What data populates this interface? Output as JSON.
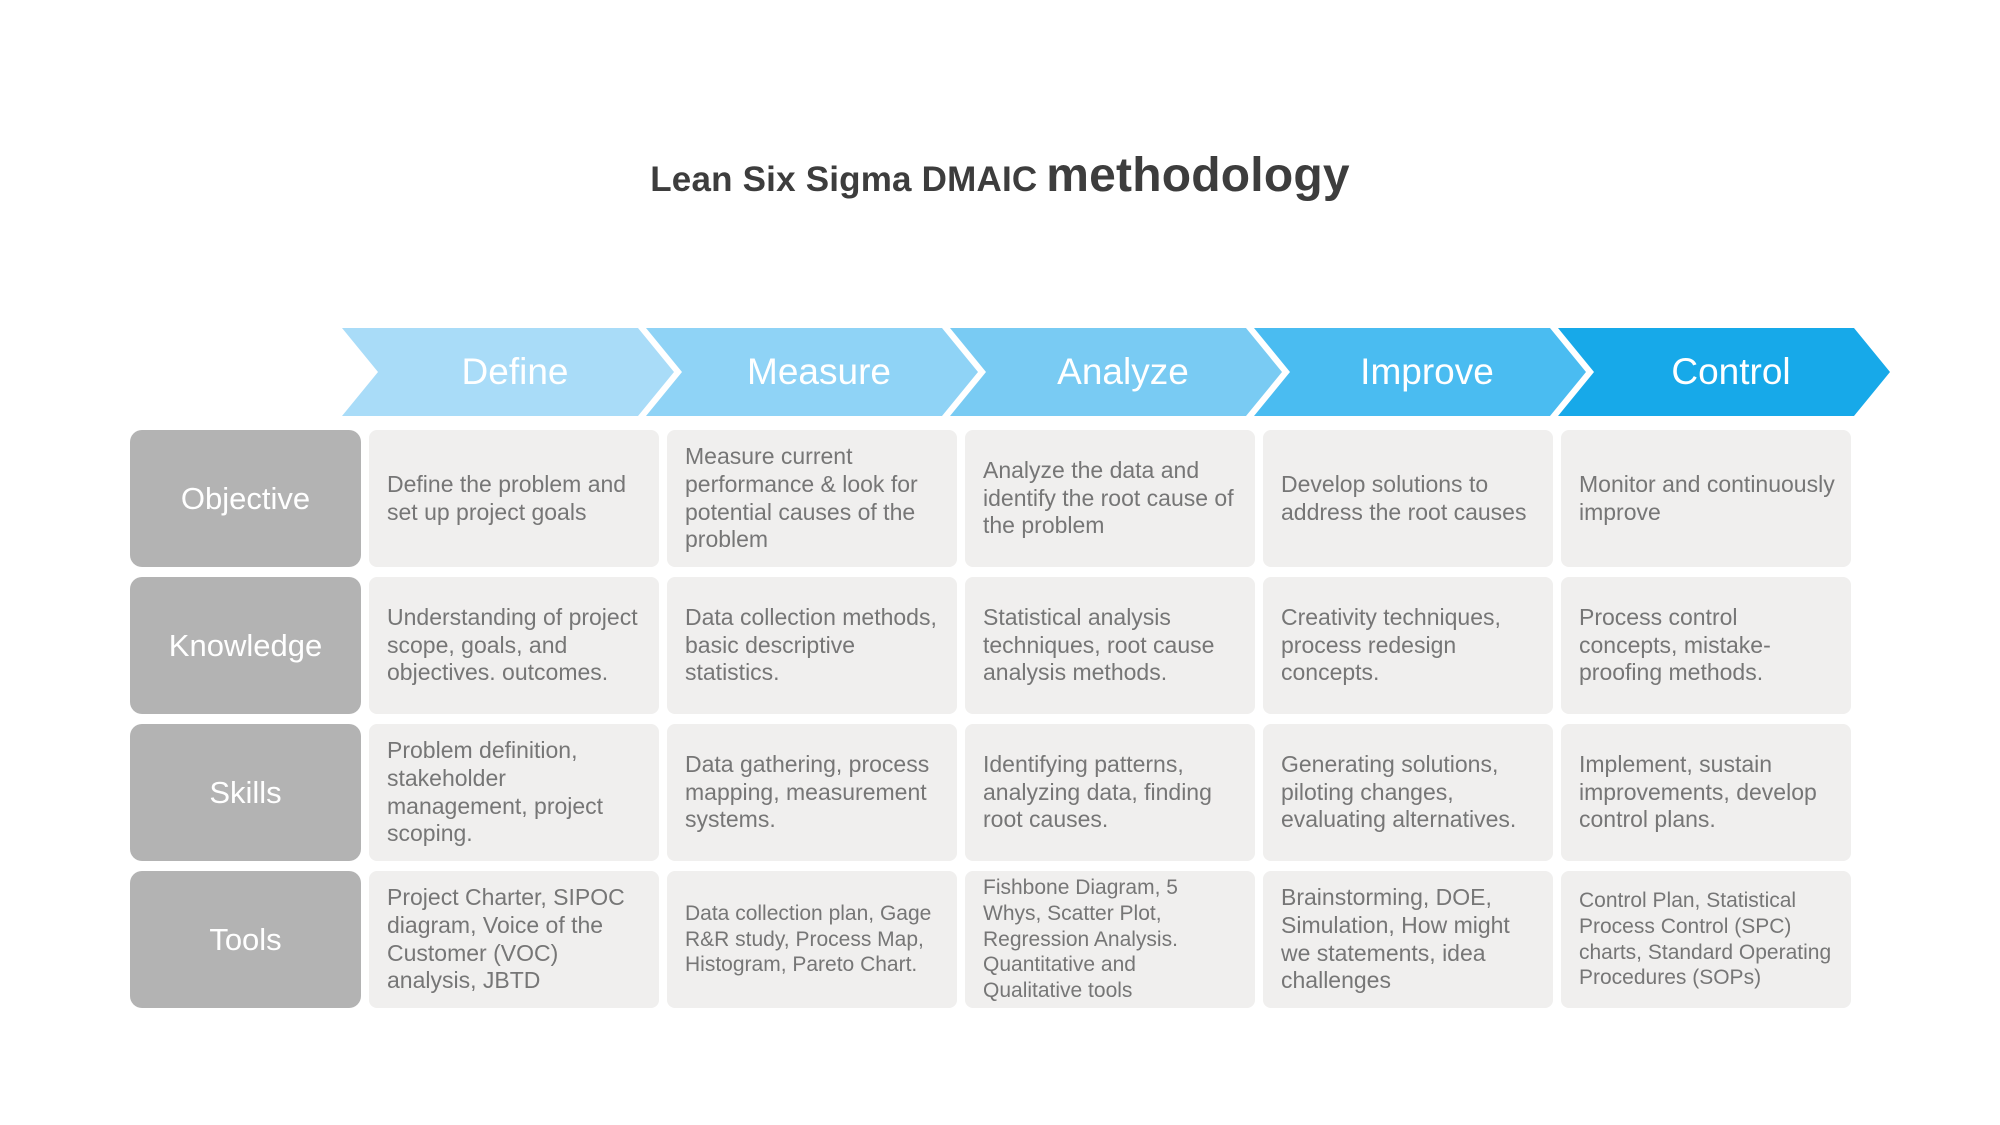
{
  "title": {
    "prefix": "Lean Six Sigma DMAIC",
    "emphasis": "methodology",
    "color": "#3d3d3d"
  },
  "phases": [
    {
      "label": "Define",
      "color": "#a9dcf8"
    },
    {
      "label": "Measure",
      "color": "#8fd3f6"
    },
    {
      "label": "Analyze",
      "color": "#79cbf3"
    },
    {
      "label": "Improve",
      "color": "#4abcf1"
    },
    {
      "label": "Control",
      "color": "#17a9e9"
    }
  ],
  "rows": [
    {
      "label": "Objective",
      "cells": [
        {
          "text": "Define the problem and set up project goals"
        },
        {
          "text": "Measure current performance & look for potential causes of the problem"
        },
        {
          "text": "Analyze the data and identify the root cause of the problem"
        },
        {
          "text": "Develop solutions to address the root causes"
        },
        {
          "text": "Monitor and continuously improve"
        }
      ]
    },
    {
      "label": "Knowledge",
      "cells": [
        {
          "text": "Understanding of project scope, goals, and objectives. outcomes."
        },
        {
          "text": "Data collection methods, basic descriptive statistics."
        },
        {
          "text": "Statistical analysis techniques, root cause analysis methods."
        },
        {
          "text": "Creativity techniques, process redesign concepts."
        },
        {
          "text": "Process control concepts, mistake-proofing methods."
        }
      ]
    },
    {
      "label": "Skills",
      "cells": [
        {
          "text": "Problem definition, stakeholder management, project scoping."
        },
        {
          "text": "Data gathering, process mapping, measurement systems."
        },
        {
          "text": "Identifying patterns, analyzing data, finding root causes."
        },
        {
          "text": "Generating solutions, piloting changes, evaluating alternatives."
        },
        {
          "text": "Implement, sustain improvements, develop control plans."
        }
      ]
    },
    {
      "label": "Tools",
      "cells": [
        {
          "text": "Project Charter, SIPOC diagram, Voice of the Customer (VOC) analysis, JBTD"
        },
        {
          "text": "Data collection plan, Gage R&R study, Process Map, Histogram, Pareto Chart."
        },
        {
          "text": "Fishbone Diagram, 5 Whys, Scatter Plot, Regression Analysis. Quantitative and Qualitative tools"
        },
        {
          "text": "Brainstorming, DOE, Simulation, How might we statements, idea challenges"
        },
        {
          "text": "Control Plan, Statistical Process Control (SPC) charts, Standard Operating Procedures (SOPs)"
        }
      ]
    }
  ],
  "colors": {
    "row_label_bg": "#b3b3b3",
    "cell_bg": "#f0efee",
    "cell_text": "#767676",
    "title_text": "#3d3d3d"
  }
}
